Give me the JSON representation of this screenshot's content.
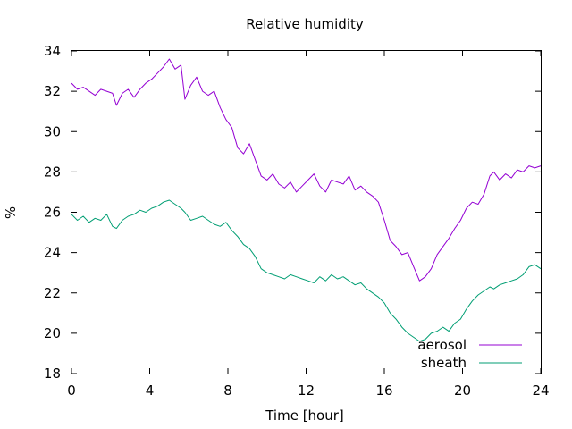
{
  "chart_data": {
    "type": "line",
    "title": "Relative humidity",
    "xlabel": "Time [hour]",
    "ylabel": "%",
    "xlim": [
      0,
      24
    ],
    "ylim": [
      18,
      34
    ],
    "xticks": [
      0,
      4,
      8,
      12,
      16,
      20,
      24
    ],
    "yticks": [
      18,
      20,
      22,
      24,
      26,
      28,
      30,
      32,
      34
    ],
    "grid": false,
    "legend_position": "bottom-right",
    "series": [
      {
        "name": "aerosol",
        "color": "#9400d3",
        "x": [
          0,
          0.3,
          0.6,
          0.9,
          1.2,
          1.5,
          1.8,
          2.1,
          2.3,
          2.6,
          2.9,
          3.2,
          3.5,
          3.8,
          4.1,
          4.4,
          4.7,
          5.0,
          5.3,
          5.6,
          5.8,
          6.1,
          6.4,
          6.7,
          7.0,
          7.3,
          7.6,
          7.9,
          8.2,
          8.5,
          8.8,
          9.1,
          9.4,
          9.7,
          10.0,
          10.3,
          10.6,
          10.9,
          11.2,
          11.5,
          11.8,
          12.1,
          12.4,
          12.7,
          13.0,
          13.3,
          13.6,
          13.9,
          14.2,
          14.5,
          14.8,
          15.1,
          15.4,
          15.7,
          16.0,
          16.3,
          16.6,
          16.9,
          17.2,
          17.5,
          17.8,
          18.1,
          18.4,
          18.7,
          19.0,
          19.3,
          19.6,
          19.9,
          20.2,
          20.5,
          20.8,
          21.1,
          21.4,
          21.6,
          21.9,
          22.2,
          22.5,
          22.8,
          23.1,
          23.4,
          23.7,
          24.0
        ],
        "y": [
          32.4,
          32.1,
          32.2,
          32.0,
          31.8,
          32.1,
          32.0,
          31.9,
          31.3,
          31.9,
          32.1,
          31.7,
          32.1,
          32.4,
          32.6,
          32.9,
          33.2,
          33.6,
          33.1,
          33.3,
          31.6,
          32.3,
          32.7,
          32.0,
          31.8,
          32.0,
          31.2,
          30.6,
          30.2,
          29.2,
          28.9,
          29.4,
          28.6,
          27.8,
          27.6,
          27.9,
          27.4,
          27.2,
          27.5,
          27.0,
          27.3,
          27.6,
          27.9,
          27.3,
          27.0,
          27.6,
          27.5,
          27.4,
          27.8,
          27.1,
          27.3,
          27.0,
          26.8,
          26.5,
          25.6,
          24.6,
          24.3,
          23.9,
          24.0,
          23.3,
          22.6,
          22.8,
          23.2,
          23.9,
          24.3,
          24.7,
          25.2,
          25.6,
          26.2,
          26.5,
          26.4,
          26.9,
          27.8,
          28.0,
          27.6,
          27.9,
          27.7,
          28.1,
          28.0,
          28.3,
          28.2,
          28.3
        ]
      },
      {
        "name": "sheath",
        "color": "#009e73",
        "x": [
          0,
          0.3,
          0.6,
          0.9,
          1.2,
          1.5,
          1.8,
          2.1,
          2.3,
          2.6,
          2.9,
          3.2,
          3.5,
          3.8,
          4.1,
          4.4,
          4.7,
          5.0,
          5.3,
          5.6,
          5.8,
          6.1,
          6.4,
          6.7,
          7.0,
          7.3,
          7.6,
          7.9,
          8.2,
          8.5,
          8.8,
          9.1,
          9.4,
          9.7,
          10.0,
          10.3,
          10.6,
          10.9,
          11.2,
          11.5,
          11.8,
          12.1,
          12.4,
          12.7,
          13.0,
          13.3,
          13.6,
          13.9,
          14.2,
          14.5,
          14.8,
          15.1,
          15.4,
          15.7,
          16.0,
          16.3,
          16.6,
          16.9,
          17.2,
          17.5,
          17.8,
          18.1,
          18.4,
          18.7,
          19.0,
          19.3,
          19.6,
          19.9,
          20.2,
          20.5,
          20.8,
          21.1,
          21.4,
          21.6,
          21.9,
          22.2,
          22.5,
          22.8,
          23.1,
          23.4,
          23.7,
          24.0
        ],
        "y": [
          25.9,
          25.6,
          25.8,
          25.5,
          25.7,
          25.6,
          25.9,
          25.3,
          25.2,
          25.6,
          25.8,
          25.9,
          26.1,
          26.0,
          26.2,
          26.3,
          26.5,
          26.6,
          26.4,
          26.2,
          26.0,
          25.6,
          25.7,
          25.8,
          25.6,
          25.4,
          25.3,
          25.5,
          25.1,
          24.8,
          24.4,
          24.2,
          23.8,
          23.2,
          23.0,
          22.9,
          22.8,
          22.7,
          22.9,
          22.8,
          22.7,
          22.6,
          22.5,
          22.8,
          22.6,
          22.9,
          22.7,
          22.8,
          22.6,
          22.4,
          22.5,
          22.2,
          22.0,
          21.8,
          21.5,
          21.0,
          20.7,
          20.3,
          20.0,
          19.8,
          19.6,
          19.7,
          20.0,
          20.1,
          20.3,
          20.1,
          20.5,
          20.7,
          21.2,
          21.6,
          21.9,
          22.1,
          22.3,
          22.2,
          22.4,
          22.5,
          22.6,
          22.7,
          22.9,
          23.3,
          23.4,
          23.2
        ]
      }
    ]
  }
}
